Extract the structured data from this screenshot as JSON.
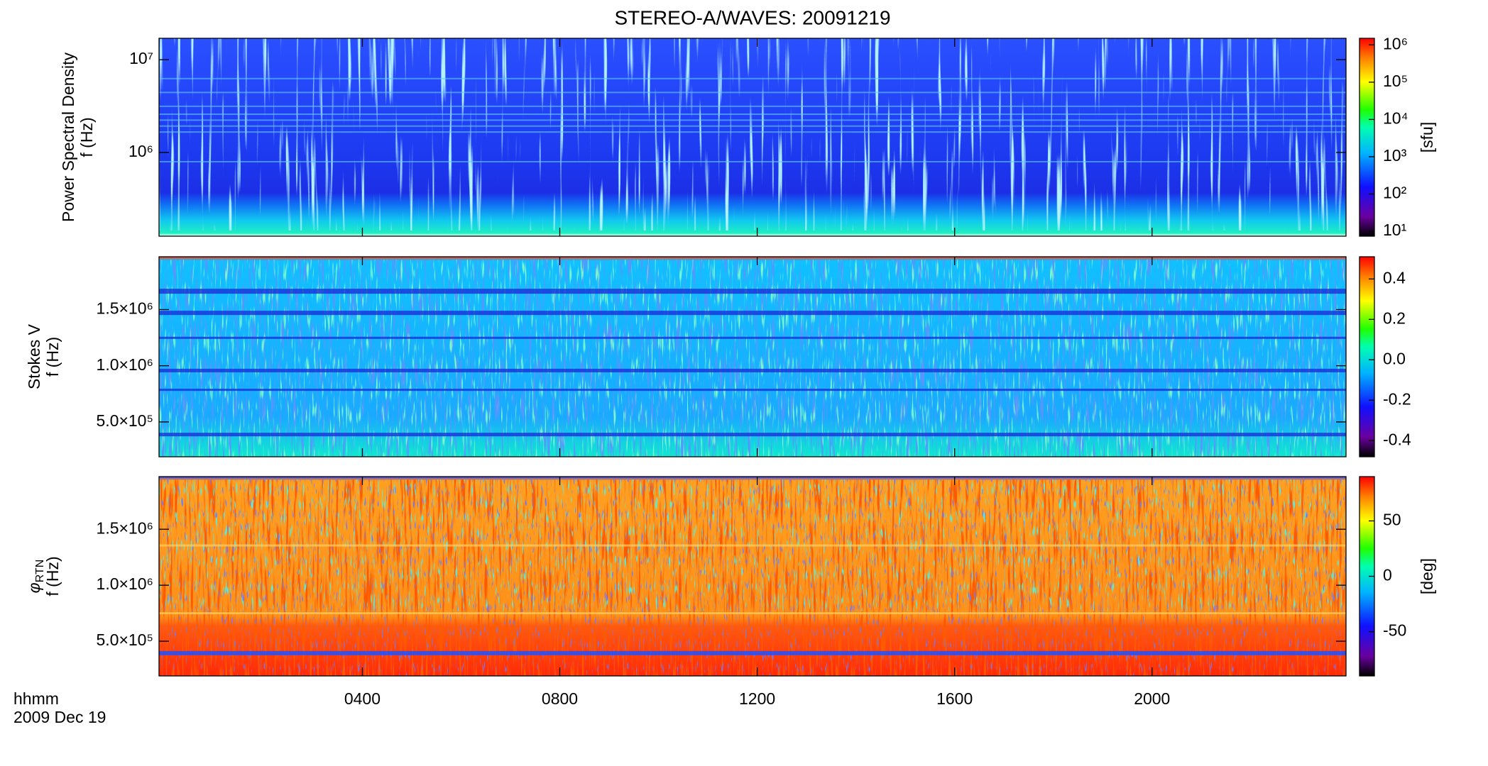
{
  "chart_data": {
    "type": "spectrogram",
    "title": "STEREO-A/WAVES: 20091219",
    "x_label": "hhmm",
    "date_label": "2009 Dec 19",
    "xlim": [
      -0.12,
      23.93
    ],
    "xticks": [
      {
        "value": 4,
        "label": "0400"
      },
      {
        "value": 8,
        "label": "0800"
      },
      {
        "value": 12,
        "label": "1200"
      },
      {
        "value": 16,
        "label": "1600"
      },
      {
        "value": 20,
        "label": "2000"
      }
    ],
    "panels": [
      {
        "ylabel": [
          "Power Spectral Density",
          "f (Hz)"
        ],
        "ylog": true,
        "ylim": [
          125000,
          17000000
        ],
        "yticks": [
          {
            "value": 1000000,
            "label": "10⁶"
          },
          {
            "value": 10000000,
            "label": "10⁷"
          }
        ],
        "colorbar": {
          "log": true,
          "lim": [
            7.4,
            1500000
          ],
          "ticks": [
            {
              "value": 10,
              "label": "10¹"
            },
            {
              "value": 100,
              "label": "10²"
            },
            {
              "value": 1000,
              "label": "10³"
            },
            {
              "value": 10000,
              "label": "10⁴"
            },
            {
              "value": 100000,
              "label": "10⁵"
            },
            {
              "value": 1000000,
              "label": "10⁶"
            }
          ],
          "label": "[sfu]"
        }
      },
      {
        "ylabel": [
          "Stokes V",
          "f (Hz)"
        ],
        "ylog": false,
        "ylim": [
          190000,
          1970000
        ],
        "yticks": [
          {
            "value": 500000,
            "label": "5.0×10⁵"
          },
          {
            "value": 1000000,
            "label": "1.0×10⁶"
          },
          {
            "value": 1500000,
            "label": "1.5×10⁶"
          }
        ],
        "colorbar": {
          "log": false,
          "lim": [
            -0.48,
            0.51
          ],
          "ticks": [
            -0.4,
            -0.2,
            {
              "value": 0,
              "label": "0.0"
            },
            0.2,
            0.4
          ]
        }
      },
      {
        "ylabel": [
          "φ",
          "f (Hz)"
        ],
        "ylabel_sub": "RTN",
        "ylog": false,
        "ylim": [
          190000,
          1970000
        ],
        "yticks": [
          {
            "value": 500000,
            "label": "5.0×10⁵"
          },
          {
            "value": 1000000,
            "label": "1.0×10⁶"
          },
          {
            "value": 1500000,
            "label": "1.5×10⁶"
          }
        ],
        "colorbar": {
          "log": false,
          "lim": [
            -90,
            90
          ],
          "ticks": [
            -50,
            0,
            50
          ],
          "label": "[deg]"
        }
      }
    ]
  }
}
